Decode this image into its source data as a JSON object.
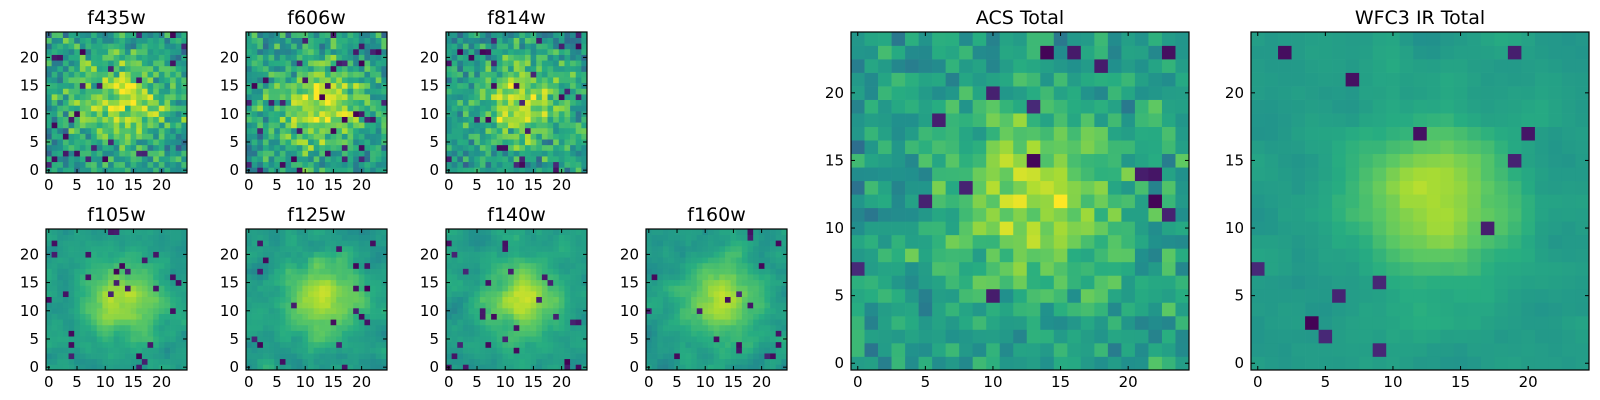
{
  "figure": {
    "background": "#ffffff"
  },
  "colormap": [
    "#440154",
    "#472c7a",
    "#3b518b",
    "#2c718e",
    "#21908d",
    "#27ad81",
    "#5cc863",
    "#aadc32",
    "#fde725"
  ],
  "chart_data": [
    {
      "type": "heatmap",
      "title": "f435w",
      "size": 25,
      "xticks": [
        0,
        5,
        10,
        15,
        20
      ],
      "yticks": [
        0,
        5,
        10,
        15,
        20
      ],
      "source_radius": 5.5,
      "noise": 0.42,
      "smoothing": 0,
      "dip_fraction": 0.06,
      "seed": 11
    },
    {
      "type": "heatmap",
      "title": "f606w",
      "size": 25,
      "xticks": [
        0,
        5,
        10,
        15,
        20
      ],
      "yticks": [
        0,
        5,
        10,
        15,
        20
      ],
      "source_radius": 5.5,
      "noise": 0.42,
      "smoothing": 0,
      "dip_fraction": 0.05,
      "seed": 23
    },
    {
      "type": "heatmap",
      "title": "f814w",
      "size": 25,
      "xticks": [
        0,
        5,
        10,
        15,
        20
      ],
      "yticks": [
        0,
        5,
        10,
        15,
        20
      ],
      "source_radius": 5.0,
      "noise": 0.4,
      "smoothing": 0,
      "dip_fraction": 0.05,
      "seed": 37
    },
    {
      "type": "heatmap",
      "title": "f105w",
      "size": 25,
      "xticks": [
        0,
        5,
        10,
        15,
        20
      ],
      "yticks": [
        0,
        5,
        10,
        15,
        20
      ],
      "source_radius": 4.5,
      "noise": 0.35,
      "smoothing": 1,
      "dip_fraction": 0.04,
      "seed": 41
    },
    {
      "type": "heatmap",
      "title": "f125w",
      "size": 25,
      "xticks": [
        0,
        5,
        10,
        15,
        20
      ],
      "yticks": [
        0,
        5,
        10,
        15,
        20
      ],
      "source_radius": 4.5,
      "noise": 0.35,
      "smoothing": 1,
      "dip_fraction": 0.04,
      "seed": 53
    },
    {
      "type": "heatmap",
      "title": "f140w",
      "size": 25,
      "xticks": [
        0,
        5,
        10,
        15,
        20
      ],
      "yticks": [
        0,
        5,
        10,
        15,
        20
      ],
      "source_radius": 4.5,
      "noise": 0.35,
      "smoothing": 1,
      "dip_fraction": 0.04,
      "seed": 67
    },
    {
      "type": "heatmap",
      "title": "f160w",
      "size": 25,
      "xticks": [
        0,
        5,
        10,
        15,
        20
      ],
      "yticks": [
        0,
        5,
        10,
        15,
        20
      ],
      "source_radius": 4.5,
      "noise": 0.35,
      "smoothing": 1,
      "dip_fraction": 0.04,
      "seed": 79
    },
    {
      "type": "heatmap",
      "title": "ACS Total",
      "size": 25,
      "xticks": [
        0,
        5,
        10,
        15,
        20
      ],
      "yticks": [
        0,
        5,
        10,
        15,
        20
      ],
      "source_radius": 4.5,
      "noise": 0.3,
      "smoothing": 0,
      "dip_fraction": 0.03,
      "seed": 83
    },
    {
      "type": "heatmap",
      "title": "WFC3 IR Total",
      "size": 25,
      "xticks": [
        0,
        5,
        10,
        15,
        20
      ],
      "yticks": [
        0,
        5,
        10,
        15,
        20
      ],
      "source_radius": 4.0,
      "noise": 0.22,
      "smoothing": 1,
      "dip_fraction": 0.02,
      "seed": 97
    }
  ]
}
